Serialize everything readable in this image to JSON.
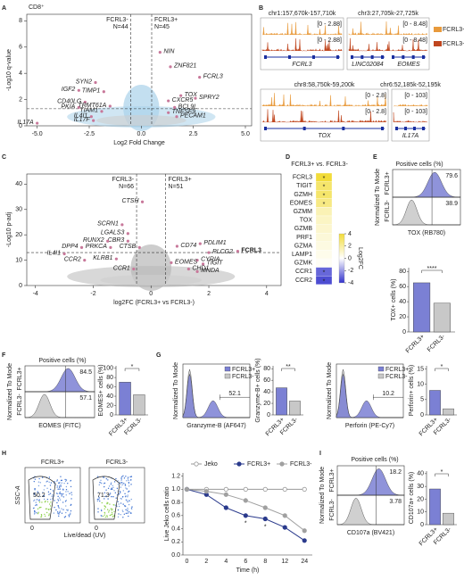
{
  "chart_data": [
    {
      "type": "volcano",
      "panel": "A",
      "title": "CD8⁺",
      "xlabel": "Log2 Fold Change",
      "ylabel": "-Log10 q-value",
      "xlim": [
        -5.5,
        5.3
      ],
      "ylim": [
        0,
        8.5
      ],
      "xticks": [
        {
          "value": -5,
          "label": "-5.0"
        },
        {
          "value": -2.5,
          "label": "-2.5"
        },
        {
          "value": 0,
          "label": "0.0"
        },
        {
          "value": 2.5,
          "label": "2.5"
        },
        {
          "value": 5,
          "label": "5.0"
        }
      ],
      "yticks": [
        0,
        2,
        4,
        6,
        8
      ],
      "thresholds": {
        "x": [
          -0.5,
          0.5
        ],
        "y": 1.3
      },
      "groups": [
        {
          "label": "FCRL3-",
          "n": "N=44"
        },
        {
          "label": "FCRL3+",
          "n": "N=45"
        }
      ],
      "point_color": "#c8789a",
      "cloud_color": "#a9d1ea",
      "genes": [
        {
          "name": "NIN",
          "x": 0.9,
          "y": 5.6
        },
        {
          "name": "ZNF821",
          "x": 1.4,
          "y": 4.5
        },
        {
          "name": "FCRL3",
          "x": 2.8,
          "y": 3.7
        },
        {
          "name": "SYN2",
          "x": -2.2,
          "y": 3.3
        },
        {
          "name": "IGF2",
          "x": -3.0,
          "y": 2.7
        },
        {
          "name": "TIMP1",
          "x": -1.8,
          "y": 2.6
        },
        {
          "name": "TOX",
          "x": 1.9,
          "y": 2.3
        },
        {
          "name": "SPRY2",
          "x": 2.6,
          "y": 2.1
        },
        {
          "name": "CXCR5",
          "x": 1.3,
          "y": 1.9
        },
        {
          "name": "CD40LG",
          "x": -2.7,
          "y": 1.8
        },
        {
          "name": "PKIA",
          "x": -3.0,
          "y": 1.4
        },
        {
          "name": "TRMT61A",
          "x": -1.5,
          "y": 1.5
        },
        {
          "name": "TIAM1",
          "x": -1.9,
          "y": 1.1
        },
        {
          "name": "BCL9L",
          "x": 1.6,
          "y": 1.4
        },
        {
          "name": "TNFSF9",
          "x": 1.3,
          "y": 1.0
        },
        {
          "name": "PECAM1",
          "x": 1.7,
          "y": 0.7
        },
        {
          "name": "IL4I1",
          "x": -2.4,
          "y": 0.7
        },
        {
          "name": "IL17F",
          "x": -2.3,
          "y": 0.4
        },
        {
          "name": "IL17A",
          "x": -5.0,
          "y": 0.2
        }
      ]
    },
    {
      "type": "tracks",
      "panel": "B",
      "legend": [
        {
          "name": "FCRL3+",
          "color": "#e89a3c"
        },
        {
          "name": "FCRL3-",
          "color": "#c0461e"
        }
      ],
      "gene_color": "#1a2fa0",
      "loci": [
        {
          "region": "chr1:157,670k-157,710k",
          "scales": [
            "[0 - 2.88]",
            "[0 - 2.88]"
          ],
          "genes": [
            "FCRL3"
          ]
        },
        {
          "region": "chr3:27,705k-27,725k",
          "scales": [
            "[0 - 8.48]",
            "[0 - 8.48]"
          ],
          "genes": [
            "LINC02084",
            "EOMES"
          ]
        },
        {
          "region": "chr8:58,750k-59,200k",
          "scales": [
            "[0 - 2.8]",
            "[0 - 2.8]"
          ],
          "genes": [
            "TOX"
          ]
        },
        {
          "region": "chr6:52,185k-52,195k",
          "scales": [
            "[0 - 103]",
            "[0 - 103]"
          ],
          "genes": [
            "IL17A"
          ]
        }
      ]
    },
    {
      "type": "volcano",
      "panel": "C",
      "xlabel": "log2FC (FCRL3+ vs FCRL3-)",
      "ylabel": "-Log10 p-adj",
      "xlim": [
        -4.3,
        4.5
      ],
      "ylim": [
        0,
        44
      ],
      "xticks": [
        -4,
        -2,
        0,
        2,
        4
      ],
      "yticks": [
        0,
        10,
        20,
        30,
        40
      ],
      "thresholds": {
        "x": [
          -0.5,
          0.5
        ],
        "y": 13
      },
      "groups": [
        {
          "label": "FCRL3-",
          "n": "N=66"
        },
        {
          "label": "FCRL3+",
          "n": "N=51"
        }
      ],
      "point_color": "#c8789a",
      "cloud_color": "#b8b8b8",
      "genes": [
        {
          "name": "CTSH",
          "x": -0.3,
          "y": 33
        },
        {
          "name": "SCRN1",
          "x": -1.0,
          "y": 24
        },
        {
          "name": "LGALS3",
          "x": -0.8,
          "y": 20.5
        },
        {
          "name": "CBR3",
          "x": -0.8,
          "y": 17.5
        },
        {
          "name": "CTSB",
          "x": -0.4,
          "y": 15
        },
        {
          "name": "RUNX2",
          "x": -1.5,
          "y": 17.5
        },
        {
          "name": "PRKCA",
          "x": -1.4,
          "y": 15
        },
        {
          "name": "DPP4",
          "x": -2.4,
          "y": 15
        },
        {
          "name": "IL4I1",
          "x": -3.0,
          "y": 12.5
        },
        {
          "name": "CCR2",
          "x": -2.3,
          "y": 10
        },
        {
          "name": "KLRB1",
          "x": -1.2,
          "y": 10.5
        },
        {
          "name": "CCR1",
          "x": -0.6,
          "y": 6.5
        },
        {
          "name": "CD74",
          "x": 0.9,
          "y": 15.5
        },
        {
          "name": "PDLIM1",
          "x": 1.7,
          "y": 16.5
        },
        {
          "name": "FCRL3",
          "x": 3.0,
          "y": 13.5,
          "bold": true
        },
        {
          "name": "PLCG2",
          "x": 2.0,
          "y": 13
        },
        {
          "name": "CYRIA",
          "x": 1.6,
          "y": 10
        },
        {
          "name": "TIGIT",
          "x": 1.8,
          "y": 8.5
        },
        {
          "name": "EOMES",
          "x": 0.7,
          "y": 9
        },
        {
          "name": "CHD1",
          "x": 1.3,
          "y": 6.5
        },
        {
          "name": "MNDA",
          "x": 1.6,
          "y": 5.5
        }
      ]
    },
    {
      "type": "heatmap",
      "panel": "D",
      "title": "FCRL3+ vs. FCRL3-",
      "rows": [
        "FCRL3",
        "TIGIT",
        "GZMH",
        "EOMES",
        "GZMM",
        "TOX",
        "GZMB",
        "PRF1",
        "GZMA",
        "LAMP1",
        "GZMK",
        "CCR1",
        "CCR2"
      ],
      "values": [
        4,
        3,
        3,
        2.5,
        1.5,
        1.2,
        1,
        0.8,
        0.6,
        0.4,
        0.2,
        -3,
        -3.5
      ],
      "stars": [
        "*",
        "*",
        "*",
        "*",
        null,
        null,
        null,
        null,
        null,
        null,
        null,
        "*",
        "*"
      ],
      "clim": [
        -4,
        4
      ],
      "cticks": [
        4,
        2,
        0,
        -2,
        -4
      ],
      "colorbar_label": "Log2FC",
      "colors": [
        "#3434cc",
        "#ffffff",
        "#f2dc3a"
      ]
    },
    {
      "type": "flow_bar",
      "panel": "E",
      "header": "Positive cells (%)",
      "hist_ylabel": "Normalized To Mode",
      "groups": [
        "FCRL3+",
        "FCRL3-"
      ],
      "percents": [
        79.6,
        38.9
      ],
      "hist_xlabel": "TOX (RB780)",
      "bar_ylabel": "TOX+ cells (%)",
      "values": [
        65,
        38
      ],
      "ylim": [
        0,
        85
      ],
      "yticks": [
        0,
        20,
        40,
        60,
        80
      ],
      "significance": "****",
      "colors": [
        "#7b80d4",
        "#c8c8c8"
      ]
    },
    {
      "type": "flow_bar",
      "panel": "F",
      "header": "Positive cells (%)",
      "hist_ylabel": "Normalized To Mode",
      "groups": [
        "FCRL3+",
        "FCRL3-"
      ],
      "percents": [
        84.5,
        57.1
      ],
      "hist_xlabel": "EOMES (FITC)",
      "bar_ylabel": "EOMES+ cells (%)",
      "values": [
        70,
        43
      ],
      "ylim": [
        0,
        105
      ],
      "yticks": [
        0,
        20,
        40,
        60,
        80,
        100
      ],
      "significance": "*",
      "colors": [
        "#7b80d4",
        "#c8c8c8"
      ]
    },
    {
      "type": "flow_bar",
      "panel": "G",
      "overlay": true,
      "hist_ylabel": "Normalized To Mode",
      "groups": [
        "FCRL3+",
        "FCRL3-"
      ],
      "percents": [
        52.1
      ],
      "hist_xlabel": "Granzyme-B (AF647)",
      "bar_ylabel": "Granzyme-B+ cells (%)",
      "values": [
        47,
        24
      ],
      "ylim": [
        0,
        85
      ],
      "yticks": [
        0,
        20,
        40,
        60,
        80
      ],
      "significance": "**",
      "colors": [
        "#7b80d4",
        "#c8c8c8"
      ]
    },
    {
      "type": "flow_bar",
      "overlay": true,
      "hist_ylabel": "Normalized To Mode",
      "groups": [
        "FCRL3+",
        "FCRL3-"
      ],
      "percents": [
        10.2
      ],
      "hist_xlabel": "Perforin (PE-Cy7)",
      "bar_ylabel": "Perforin+ cells (%)",
      "values": [
        8,
        2
      ],
      "ylim": [
        0,
        16
      ],
      "yticks": [
        0,
        5,
        10,
        15
      ],
      "significance": "*",
      "colors": [
        "#7b80d4",
        "#c8c8c8"
      ]
    },
    {
      "type": "flow_dot",
      "panel": "H",
      "plots": [
        {
          "title": "FCRL3+",
          "gate": 50.2
        },
        {
          "title": "FCRL3-",
          "gate": 71.3
        }
      ],
      "ylabel": "SSC-A",
      "xlabel": "Live/dead (UV)",
      "xticks": [
        0
      ]
    },
    {
      "type": "line",
      "xlabel": "Time (h)",
      "ylabel": "Live Jeko cells ratio",
      "categories": [
        "0",
        "2",
        "4",
        "6",
        "8",
        "12",
        "24"
      ],
      "ylim": [
        0,
        1.25
      ],
      "yticks": [
        {
          "value": 0,
          "label": "0.0"
        },
        {
          "value": 0.2,
          "label": "0.2"
        },
        {
          "value": 0.4,
          "label": "0.4"
        },
        {
          "value": 0.6,
          "label": "0.6"
        },
        {
          "value": 0.8,
          "label": "0.8"
        },
        {
          "value": 1,
          "label": "1.0"
        },
        {
          "value": 1.2,
          "label": "1.2"
        }
      ],
      "series": [
        {
          "name": "Jeko",
          "color": "#9a9a9a",
          "open": true,
          "values": [
            1,
            1,
            1,
            1,
            1,
            1,
            1
          ]
        },
        {
          "name": "FCRL3+",
          "color": "#2a3a8c",
          "values": [
            1,
            0.92,
            0.72,
            0.6,
            0.55,
            0.42,
            0.22
          ]
        },
        {
          "name": "FCRL3-",
          "color": "#a0a0a0",
          "values": [
            1,
            0.97,
            0.92,
            0.83,
            0.72,
            0.6,
            0.37
          ]
        }
      ],
      "annotations": [
        {
          "text": "*",
          "category": "6"
        },
        {
          "text": "*",
          "category": "8"
        }
      ]
    },
    {
      "type": "flow_bar",
      "panel": "I",
      "header": "Positive cells (%)",
      "hist_ylabel": "Normalized To Mode",
      "groups": [
        "FCRL3+",
        "FCRL3-"
      ],
      "percents": [
        18.2,
        3.78
      ],
      "hist_xlabel": "CD107a (BV421)",
      "bar_ylabel": "CD107a+ cells (%)",
      "values": [
        28,
        9
      ],
      "ylim": [
        0,
        42
      ],
      "yticks": [
        0,
        10,
        20,
        30,
        40
      ],
      "significance": "*",
      "colors": [
        "#7b80d4",
        "#c8c8c8"
      ]
    }
  ]
}
